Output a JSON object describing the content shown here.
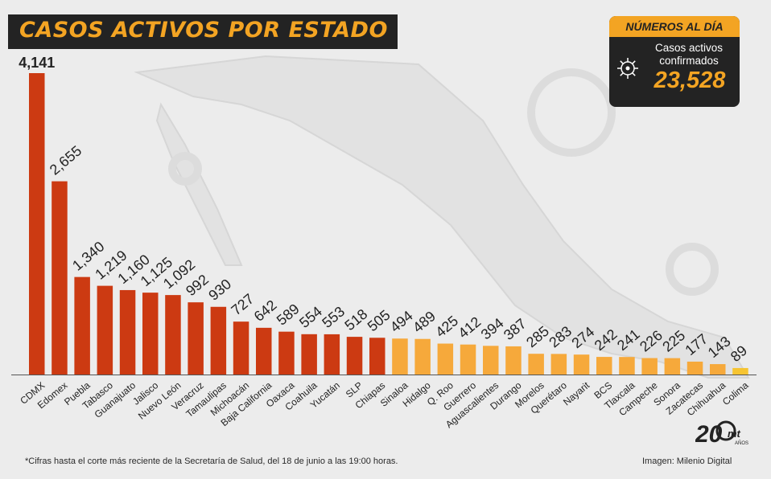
{
  "title": "CASOS ACTIVOS POR ESTADO",
  "summary": {
    "header": "NÚMEROS AL DÍA",
    "label_line1": "Casos activos",
    "label_line2": "confirmados",
    "value": "23,528",
    "icon": "virus-icon"
  },
  "footnote": "*Cifras hasta el corte más reciente de la Secretaría de Salud, del 18 de junio a las 19:00 horas.",
  "credit": "Imagen: Milenio Digital",
  "logo": {
    "number": "20",
    "brand": "mt",
    "sub": "AÑOS"
  },
  "colors": {
    "background": "#ececec",
    "dark": "#232323",
    "accent": "#f3a423",
    "high": "#cc3a12",
    "medium": "#f6a93b",
    "low": "#f6c431"
  },
  "chart_data": {
    "type": "bar",
    "title": "CASOS ACTIVOS POR ESTADO",
    "xlabel": "",
    "ylabel": "",
    "ylim": [
      0,
      4141
    ],
    "grid": false,
    "categories": [
      "CDMX",
      "Edomex",
      "Puebla",
      "Tabasco",
      "Guanajuato",
      "Jalisco",
      "Nuevo León",
      "Veracruz",
      "Tamaulipas",
      "Michoacán",
      "Baja California",
      "Oaxaca",
      "Coahuila",
      "Yucatán",
      "SLP",
      "Chiapas",
      "Sinaloa",
      "Hidalgo",
      "Q. Roo",
      "Guerrero",
      "Aguascalientes",
      "Durango",
      "Morelos",
      "Querétaro",
      "Nayarit",
      "BCS",
      "Tlaxcala",
      "Campeche",
      "Sonora",
      "Zacatecas",
      "Chihuahua",
      "Colima"
    ],
    "values": [
      4141,
      2655,
      1340,
      1219,
      1160,
      1125,
      1092,
      992,
      930,
      727,
      642,
      589,
      554,
      553,
      518,
      505,
      494,
      489,
      425,
      412,
      394,
      387,
      285,
      283,
      274,
      242,
      241,
      226,
      225,
      177,
      143,
      89
    ],
    "value_labels": [
      "4,141",
      "2,655",
      "1,340",
      "1,219",
      "1,160",
      "1,125",
      "1,092",
      "992",
      "930",
      "727",
      "642",
      "589",
      "554",
      "553",
      "518",
      "505",
      "494",
      "489",
      "425",
      "412",
      "394",
      "387",
      "285",
      "283",
      "274",
      "242",
      "241",
      "226",
      "225",
      "177",
      "143",
      "89"
    ],
    "tiers": [
      "high",
      "high",
      "high",
      "high",
      "high",
      "high",
      "high",
      "high",
      "high",
      "high",
      "high",
      "high",
      "high",
      "high",
      "high",
      "high",
      "medium",
      "medium",
      "medium",
      "medium",
      "medium",
      "medium",
      "medium",
      "medium",
      "medium",
      "medium",
      "medium",
      "medium",
      "medium",
      "medium",
      "medium",
      "low"
    ]
  }
}
